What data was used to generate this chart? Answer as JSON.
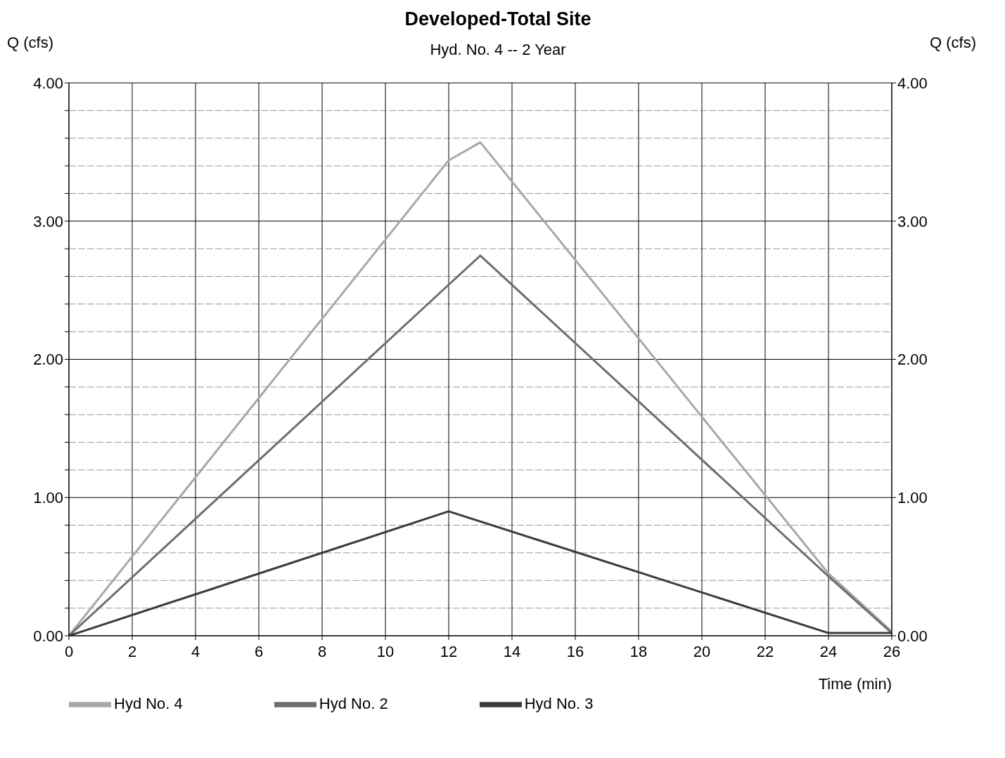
{
  "chart_data": {
    "type": "line",
    "title": "Developed-Total Site",
    "subtitle": "Hyd. No. 4 -- 2 Year",
    "xlabel": "Time (min)",
    "ylabel": "Q (cfs)",
    "y2label": "Q (cfs)",
    "xlim": [
      0,
      26
    ],
    "xticks": [
      0,
      2,
      4,
      6,
      8,
      10,
      12,
      14,
      16,
      18,
      20,
      22,
      24,
      26
    ],
    "ylim": [
      0,
      4
    ],
    "yticks": [
      {
        "value": 0,
        "label": "0.00"
      },
      {
        "value": 0.2,
        "label": null
      },
      {
        "value": 0.4,
        "label": null
      },
      {
        "value": 0.6,
        "label": null
      },
      {
        "value": 0.8,
        "label": null
      },
      {
        "value": 1,
        "label": "1.00"
      },
      {
        "value": 1.2,
        "label": null
      },
      {
        "value": 1.4,
        "label": null
      },
      {
        "value": 1.6,
        "label": null
      },
      {
        "value": 1.8,
        "label": null
      },
      {
        "value": 2,
        "label": "2.00"
      },
      {
        "value": 2.2,
        "label": null
      },
      {
        "value": 2.4,
        "label": null
      },
      {
        "value": 2.6,
        "label": null
      },
      {
        "value": 2.8,
        "label": null
      },
      {
        "value": 3,
        "label": "3.00"
      },
      {
        "value": 3.2,
        "label": null
      },
      {
        "value": 3.4,
        "label": null
      },
      {
        "value": 3.6,
        "label": null
      },
      {
        "value": 3.8,
        "label": null
      },
      {
        "value": 4,
        "label": "4.00"
      }
    ],
    "y2lim": [
      0,
      4
    ],
    "y2ticks": [
      {
        "value": 0,
        "label": "0.00"
      },
      {
        "value": 1,
        "label": "1.00"
      },
      {
        "value": 2,
        "label": "2.00"
      },
      {
        "value": 3,
        "label": "3.00"
      },
      {
        "value": 4,
        "label": "4.00"
      }
    ],
    "grid": true,
    "legend": "bottom left",
    "marker": "none",
    "line_style": "solid",
    "series": [
      {
        "name": "Hyd No. 4",
        "color": "#a8a8a8",
        "x": [
          0,
          12,
          13,
          24,
          26
        ],
        "values": [
          0,
          3.44,
          3.57,
          0.45,
          0.03
        ]
      },
      {
        "name": "Hyd No. 2",
        "color": "#6e6e6e",
        "x": [
          0,
          12,
          13,
          24,
          26
        ],
        "values": [
          0,
          2.54,
          2.75,
          0.43,
          0.02
        ]
      },
      {
        "name": "Hyd No. 3",
        "color": "#3a3a3a",
        "x": [
          0,
          12,
          24,
          26
        ],
        "values": [
          0,
          0.9,
          0.02,
          0.02
        ]
      }
    ]
  }
}
